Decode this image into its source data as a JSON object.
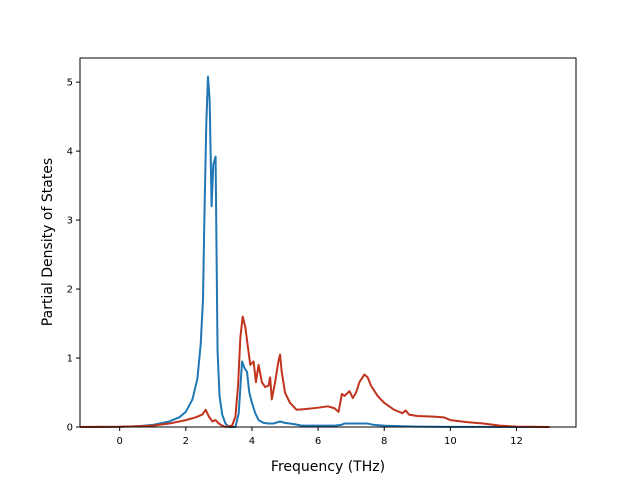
{
  "chart_data": {
    "type": "line",
    "title": "",
    "xlabel": "Frequency (THz)",
    "ylabel": "Partial Density of States",
    "xlim": [
      -1.2,
      13.8
    ],
    "ylim": [
      0,
      5.35
    ],
    "xticks": [
      0,
      2,
      4,
      6,
      8,
      10,
      12
    ],
    "yticks": [
      0,
      1,
      2,
      3,
      4,
      5
    ],
    "grid": false,
    "legend": "none",
    "series": [
      {
        "color": "#1f77b4",
        "points": [
          [
            -1.2,
            0.0
          ],
          [
            0.0,
            0.003
          ],
          [
            0.5,
            0.01
          ],
          [
            1.0,
            0.03
          ],
          [
            1.5,
            0.08
          ],
          [
            1.8,
            0.14
          ],
          [
            2.0,
            0.22
          ],
          [
            2.2,
            0.4
          ],
          [
            2.35,
            0.7
          ],
          [
            2.45,
            1.2
          ],
          [
            2.52,
            1.85
          ],
          [
            2.56,
            3.0
          ],
          [
            2.62,
            4.4
          ],
          [
            2.67,
            5.08
          ],
          [
            2.72,
            4.75
          ],
          [
            2.78,
            3.2
          ],
          [
            2.83,
            3.8
          ],
          [
            2.9,
            3.92
          ],
          [
            2.96,
            1.1
          ],
          [
            3.02,
            0.45
          ],
          [
            3.1,
            0.18
          ],
          [
            3.2,
            0.05
          ],
          [
            3.3,
            0.0
          ],
          [
            3.5,
            0.0
          ],
          [
            3.6,
            0.2
          ],
          [
            3.7,
            0.95
          ],
          [
            3.78,
            0.85
          ],
          [
            3.85,
            0.8
          ],
          [
            3.92,
            0.5
          ],
          [
            4.0,
            0.35
          ],
          [
            4.1,
            0.2
          ],
          [
            4.2,
            0.1
          ],
          [
            4.35,
            0.06
          ],
          [
            4.5,
            0.05
          ],
          [
            4.65,
            0.05
          ],
          [
            4.85,
            0.08
          ],
          [
            5.0,
            0.06
          ],
          [
            5.3,
            0.04
          ],
          [
            5.5,
            0.02
          ],
          [
            6.0,
            0.02
          ],
          [
            6.5,
            0.02
          ],
          [
            6.7,
            0.03
          ],
          [
            6.8,
            0.05
          ],
          [
            7.2,
            0.05
          ],
          [
            7.5,
            0.05
          ],
          [
            7.7,
            0.03
          ],
          [
            8.0,
            0.02
          ],
          [
            8.5,
            0.01
          ],
          [
            9.0,
            0.005
          ],
          [
            10.0,
            0.002
          ],
          [
            11.0,
            0.001
          ],
          [
            13.0,
            0.0
          ]
        ]
      },
      {
        "color": "#c0341d",
        "points": [
          [
            -1.2,
            0.0
          ],
          [
            0.0,
            0.003
          ],
          [
            0.5,
            0.01
          ],
          [
            1.0,
            0.02
          ],
          [
            1.5,
            0.05
          ],
          [
            2.0,
            0.1
          ],
          [
            2.3,
            0.14
          ],
          [
            2.5,
            0.18
          ],
          [
            2.6,
            0.25
          ],
          [
            2.7,
            0.15
          ],
          [
            2.8,
            0.08
          ],
          [
            2.9,
            0.1
          ],
          [
            3.0,
            0.05
          ],
          [
            3.1,
            0.02
          ],
          [
            3.2,
            0.0
          ],
          [
            3.4,
            0.02
          ],
          [
            3.5,
            0.15
          ],
          [
            3.58,
            0.6
          ],
          [
            3.65,
            1.3
          ],
          [
            3.72,
            1.6
          ],
          [
            3.8,
            1.45
          ],
          [
            3.88,
            1.15
          ],
          [
            3.95,
            0.9
          ],
          [
            4.05,
            0.95
          ],
          [
            4.12,
            0.65
          ],
          [
            4.2,
            0.9
          ],
          [
            4.3,
            0.65
          ],
          [
            4.4,
            0.58
          ],
          [
            4.5,
            0.6
          ],
          [
            4.55,
            0.72
          ],
          [
            4.6,
            0.4
          ],
          [
            4.7,
            0.65
          ],
          [
            4.8,
            0.95
          ],
          [
            4.85,
            1.05
          ],
          [
            4.9,
            0.8
          ],
          [
            5.0,
            0.5
          ],
          [
            5.15,
            0.35
          ],
          [
            5.35,
            0.25
          ],
          [
            5.6,
            0.26
          ],
          [
            6.0,
            0.28
          ],
          [
            6.3,
            0.3
          ],
          [
            6.5,
            0.27
          ],
          [
            6.62,
            0.22
          ],
          [
            6.72,
            0.48
          ],
          [
            6.8,
            0.45
          ],
          [
            6.95,
            0.52
          ],
          [
            7.05,
            0.42
          ],
          [
            7.15,
            0.5
          ],
          [
            7.25,
            0.65
          ],
          [
            7.4,
            0.76
          ],
          [
            7.5,
            0.72
          ],
          [
            7.6,
            0.6
          ],
          [
            7.8,
            0.45
          ],
          [
            8.0,
            0.35
          ],
          [
            8.3,
            0.25
          ],
          [
            8.55,
            0.2
          ],
          [
            8.65,
            0.24
          ],
          [
            8.75,
            0.18
          ],
          [
            9.0,
            0.16
          ],
          [
            9.5,
            0.15
          ],
          [
            9.8,
            0.14
          ],
          [
            10.0,
            0.1
          ],
          [
            10.5,
            0.07
          ],
          [
            11.0,
            0.05
          ],
          [
            11.5,
            0.02
          ],
          [
            12.0,
            0.005
          ],
          [
            13.0,
            0.0
          ]
        ]
      }
    ]
  }
}
